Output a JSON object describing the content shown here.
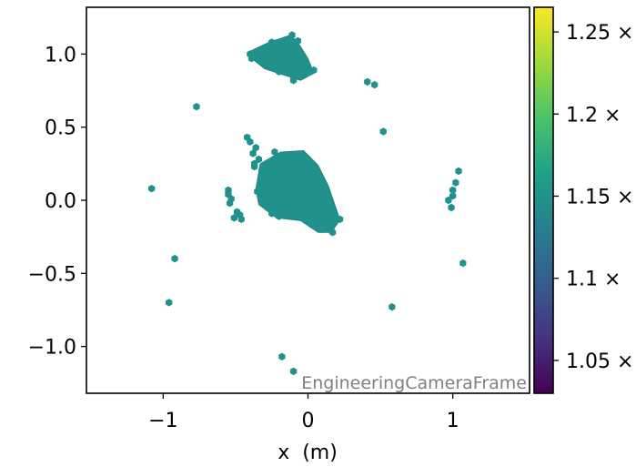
{
  "chart_data": {
    "type": "scatter",
    "marker": "hexagon",
    "frame_label": "EngineeringCameraFrame",
    "xlabel": "x  (m)",
    "ylabel": "",
    "xlim": [
      -1.53,
      1.53
    ],
    "ylim": [
      -1.32,
      1.32
    ],
    "x_ticks": [
      {
        "value": -1,
        "label": "−1"
      },
      {
        "value": 0,
        "label": "0"
      },
      {
        "value": 1,
        "label": "1"
      }
    ],
    "y_ticks": [
      {
        "value": 1.0,
        "label": "1.0"
      },
      {
        "value": 0.5,
        "label": "0.5"
      },
      {
        "value": 0.0,
        "label": "0.0"
      },
      {
        "value": -0.5,
        "label": "−0.5"
      },
      {
        "value": -1.0,
        "label": "−1.0"
      }
    ],
    "grid": false,
    "point_color": "#21918c",
    "colorbar": {
      "colormap": "viridis",
      "range": [
        1.03,
        1.265
      ],
      "ticks": [
        {
          "value": 1.25,
          "label": "1.25 ×"
        },
        {
          "value": 1.2,
          "label": "1.2 ×"
        },
        {
          "value": 1.15,
          "label": "1.15 ×"
        },
        {
          "value": 1.1,
          "label": "1.1 ×"
        },
        {
          "value": 1.05,
          "label": "1.05 ×"
        }
      ]
    },
    "clusters": [
      {
        "polygon": [
          [
            -0.4,
            1.02
          ],
          [
            -0.27,
            1.08
          ],
          [
            -0.12,
            1.13
          ],
          [
            -0.07,
            1.08
          ],
          [
            0.0,
            0.97
          ],
          [
            0.04,
            0.87
          ],
          [
            -0.05,
            0.82
          ],
          [
            -0.18,
            0.86
          ],
          [
            -0.3,
            0.9
          ],
          [
            -0.39,
            0.97
          ]
        ],
        "value": 1.15
      },
      {
        "polygon": [
          [
            -0.33,
            0.25
          ],
          [
            -0.19,
            0.33
          ],
          [
            -0.03,
            0.34
          ],
          [
            0.07,
            0.24
          ],
          [
            0.14,
            0.1
          ],
          [
            0.21,
            -0.1
          ],
          [
            0.21,
            -0.15
          ],
          [
            0.16,
            -0.22
          ],
          [
            0.07,
            -0.22
          ],
          [
            -0.05,
            -0.14
          ],
          [
            -0.22,
            -0.12
          ],
          [
            -0.34,
            -0.03
          ],
          [
            -0.36,
            0.08
          ]
        ],
        "value": 1.15
      }
    ],
    "points": [
      {
        "x": -0.42,
        "y": 0.43
      },
      {
        "x": -0.4,
        "y": 0.4
      },
      {
        "x": -0.36,
        "y": 0.36
      },
      {
        "x": -0.38,
        "y": 0.32
      },
      {
        "x": -0.34,
        "y": 0.28
      },
      {
        "x": -0.37,
        "y": 0.25
      },
      {
        "x": -0.37,
        "y": 0.23
      },
      {
        "x": -0.23,
        "y": 0.33
      },
      {
        "x": -0.19,
        "y": 0.29
      },
      {
        "x": -0.32,
        "y": 0.2
      },
      {
        "x": -0.29,
        "y": 0.16
      },
      {
        "x": -0.19,
        "y": 0.24
      },
      {
        "x": -0.33,
        "y": 0.1
      },
      {
        "x": -0.35,
        "y": 0.06
      },
      {
        "x": -0.33,
        "y": 0.03
      },
      {
        "x": -0.28,
        "y": -0.05
      },
      {
        "x": -0.25,
        "y": -0.09
      },
      {
        "x": -0.2,
        "y": -0.11
      },
      {
        "x": 0.1,
        "y": -0.13
      },
      {
        "x": 0.13,
        "y": -0.17
      },
      {
        "x": 0.16,
        "y": -0.19
      },
      {
        "x": 0.09,
        "y": -0.2
      },
      {
        "x": 0.17,
        "y": -0.22
      },
      {
        "x": 0.22,
        "y": -0.13
      },
      {
        "x": -0.55,
        "y": 0.07
      },
      {
        "x": -0.55,
        "y": 0.04
      },
      {
        "x": -0.53,
        "y": 0.01
      },
      {
        "x": -0.54,
        "y": -0.02
      },
      {
        "x": -0.49,
        "y": -0.08
      },
      {
        "x": -0.47,
        "y": -0.1
      },
      {
        "x": -0.51,
        "y": -0.12
      },
      {
        "x": -0.46,
        "y": -0.13
      },
      {
        "x": -0.77,
        "y": 0.64
      },
      {
        "x": -1.08,
        "y": 0.08
      },
      {
        "x": -0.92,
        "y": -0.4
      },
      {
        "x": -0.96,
        "y": -0.7
      },
      {
        "x": -0.18,
        "y": -1.07
      },
      {
        "x": -0.1,
        "y": -1.17
      },
      {
        "x": 0.41,
        "y": 0.81
      },
      {
        "x": 0.46,
        "y": 0.79
      },
      {
        "x": 0.52,
        "y": 0.47
      },
      {
        "x": 1.04,
        "y": 0.2
      },
      {
        "x": 1.02,
        "y": 0.12
      },
      {
        "x": 1.0,
        "y": 0.07
      },
      {
        "x": 1.0,
        "y": 0.03
      },
      {
        "x": 0.97,
        "y": 0.0
      },
      {
        "x": 0.99,
        "y": -0.05
      },
      {
        "x": 1.07,
        "y": -0.43
      },
      {
        "x": 0.58,
        "y": -0.73
      },
      {
        "x": -0.4,
        "y": 1.0
      },
      {
        "x": -0.39,
        "y": 0.97
      },
      {
        "x": -0.25,
        "y": 1.08
      },
      {
        "x": -0.11,
        "y": 1.13
      },
      {
        "x": -0.07,
        "y": 1.09
      },
      {
        "x": 0.02,
        "y": 0.88
      },
      {
        "x": 0.04,
        "y": 0.89
      },
      {
        "x": -0.1,
        "y": 0.84
      },
      {
        "x": -0.1,
        "y": 0.82
      },
      {
        "x": -0.2,
        "y": 0.88
      }
    ]
  }
}
